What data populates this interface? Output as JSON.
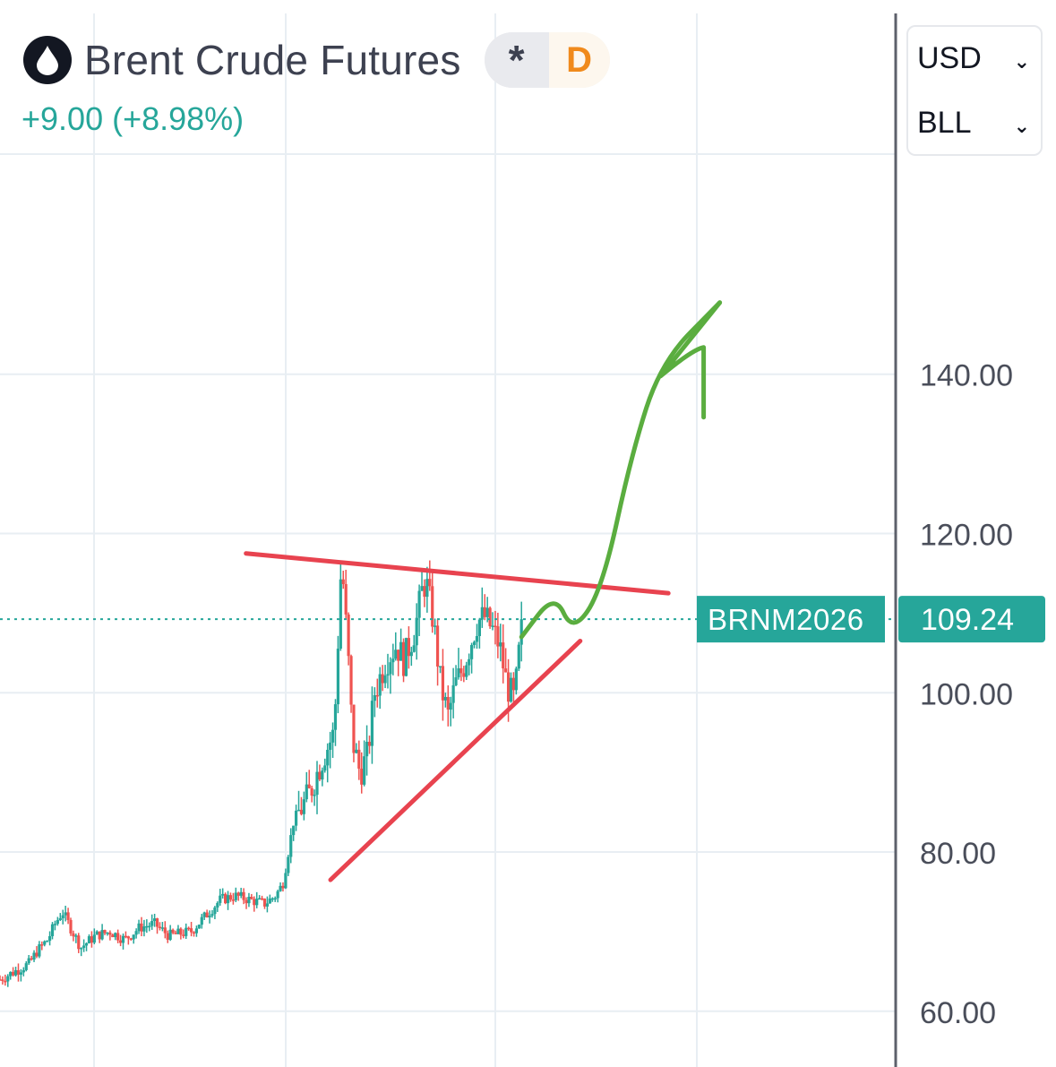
{
  "header": {
    "title": "Brent Crude Futures",
    "logo_icon": "oil-drop-icon",
    "asterisk_label": "*",
    "interval_label": "D",
    "change": "+9.00 (+8.98%)",
    "change_color": "#26a69a"
  },
  "selectors": {
    "currency": "USD",
    "unit": "BLL"
  },
  "price_tag": {
    "symbol": "BRNM2026",
    "price": "109.24",
    "color": "#26a69a"
  },
  "colors": {
    "up": "#26a69a",
    "down": "#ef5350",
    "trendline": "#e8434f",
    "arrow": "#5aad3f",
    "grid": "#e8eef3",
    "axis_line": "#5d606b"
  },
  "chart_data": {
    "type": "candlestick",
    "y_axis": {
      "min": 53,
      "max": 187,
      "ticks": [
        "60.00",
        "80.00",
        "100.00",
        "120.00",
        "140.00"
      ],
      "tick_values": [
        60,
        80,
        100,
        120,
        140
      ],
      "position": "right"
    },
    "grid": true,
    "last_price": 109.24,
    "approximate_path": [
      [
        0,
        64
      ],
      [
        0.02,
        65
      ],
      [
        0.04,
        66
      ],
      [
        0.05,
        67.5
      ],
      [
        0.065,
        69
      ],
      [
        0.075,
        71
      ],
      [
        0.085,
        72.5
      ],
      [
        0.11,
        68
      ],
      [
        0.13,
        69.5
      ],
      [
        0.15,
        70
      ],
      [
        0.17,
        69
      ],
      [
        0.19,
        70.5
      ],
      [
        0.21,
        71
      ],
      [
        0.23,
        69.5
      ],
      [
        0.26,
        70
      ],
      [
        0.28,
        72
      ],
      [
        0.3,
        74
      ],
      [
        0.32,
        74.5
      ],
      [
        0.34,
        74
      ],
      [
        0.36,
        73.5
      ],
      [
        0.375,
        74.5
      ],
      [
        0.385,
        76
      ],
      [
        0.4,
        84
      ],
      [
        0.42,
        87
      ],
      [
        0.44,
        92
      ],
      [
        0.455,
        95
      ],
      [
        0.465,
        117
      ],
      [
        0.475,
        103
      ],
      [
        0.48,
        94
      ],
      [
        0.49,
        90
      ],
      [
        0.5,
        92
      ],
      [
        0.51,
        100
      ],
      [
        0.525,
        104
      ],
      [
        0.54,
        106
      ],
      [
        0.55,
        104
      ],
      [
        0.565,
        108
      ],
      [
        0.575,
        113
      ],
      [
        0.58,
        114
      ],
      [
        0.59,
        109
      ],
      [
        0.6,
        101
      ],
      [
        0.61,
        97
      ],
      [
        0.62,
        101
      ],
      [
        0.63,
        103
      ],
      [
        0.64,
        106
      ],
      [
        0.65,
        109
      ],
      [
        0.66,
        109.5
      ],
      [
        0.67,
        108
      ],
      [
        0.68,
        106
      ],
      [
        0.69,
        101
      ],
      [
        0.7,
        99
      ],
      [
        0.705,
        103
      ],
      [
        0.71,
        109.24
      ]
    ],
    "annotations": [
      {
        "type": "trendline",
        "color": "#e8434f",
        "from": [
          0.335,
          117.5
        ],
        "to": [
          0.91,
          112.5
        ]
      },
      {
        "type": "trendline",
        "color": "#e8434f",
        "from": [
          0.45,
          76.5
        ],
        "to": [
          0.79,
          106.5
        ]
      },
      {
        "type": "arrow",
        "color": "#5aad3f",
        "path": [
          [
            0.71,
            107
          ],
          [
            0.755,
            112.5
          ],
          [
            0.78,
            107.5
          ],
          [
            0.82,
            113
          ],
          [
            0.86,
            130
          ],
          [
            0.9,
            141.5
          ],
          [
            0.98,
            149
          ]
        ]
      }
    ]
  }
}
